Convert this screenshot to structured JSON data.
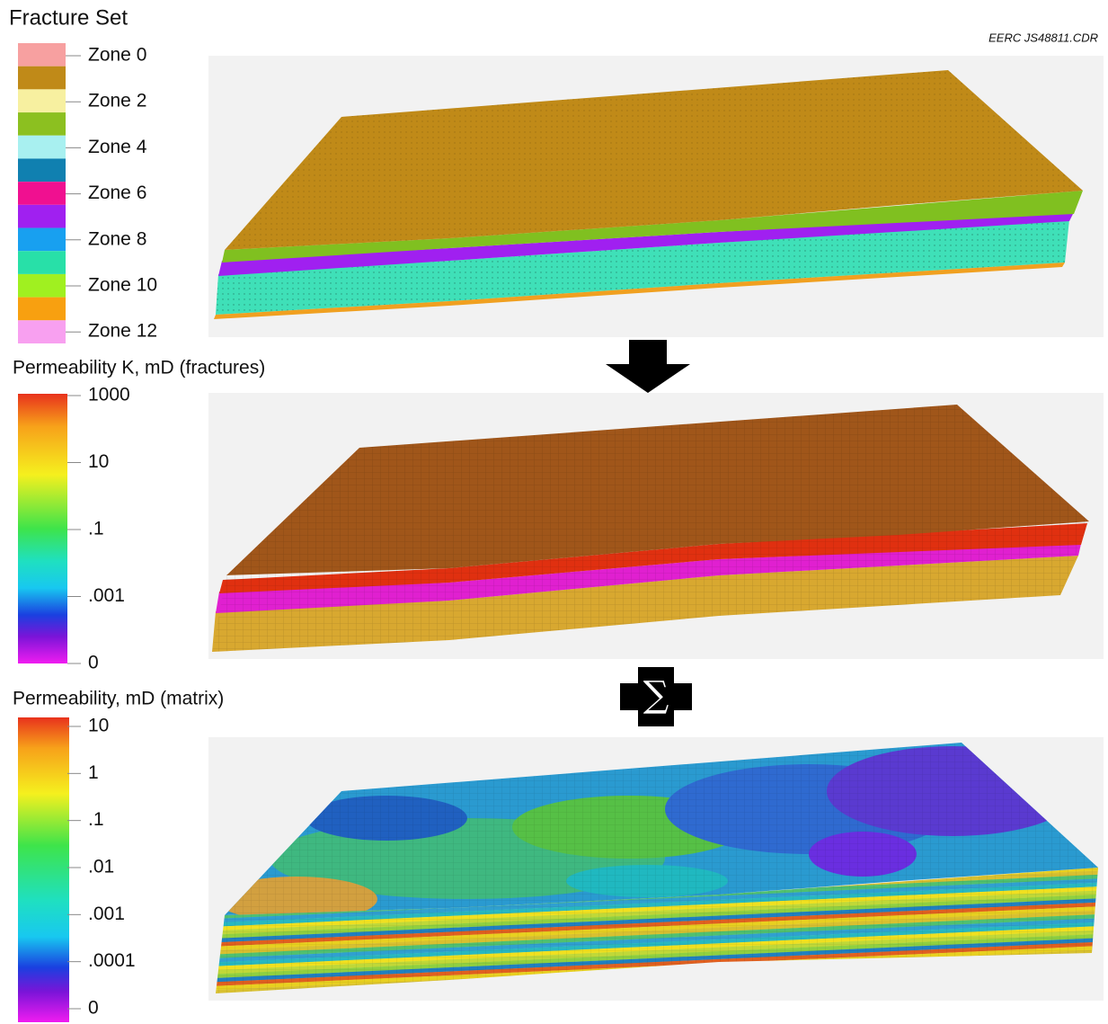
{
  "header": {
    "title": "Fracture Set",
    "file_id": "EERC JS48811.CDR"
  },
  "fracture_legend": {
    "labels": [
      "Zone 0",
      "Zone 2",
      "Zone 4",
      "Zone 6",
      "Zone 8",
      "Zone 10",
      "Zone 12"
    ]
  },
  "fracture_permeability_legend": {
    "title": "Permeability K, mD (fractures)",
    "ticks": [
      "1000",
      "10",
      ".1",
      ".001",
      "0"
    ]
  },
  "matrix_permeability_legend": {
    "title": "Permeability, mD (matrix)",
    "ticks": [
      "10",
      "1",
      ".1",
      ".01",
      ".001",
      ".0001",
      "0"
    ]
  },
  "operator": "∑"
}
